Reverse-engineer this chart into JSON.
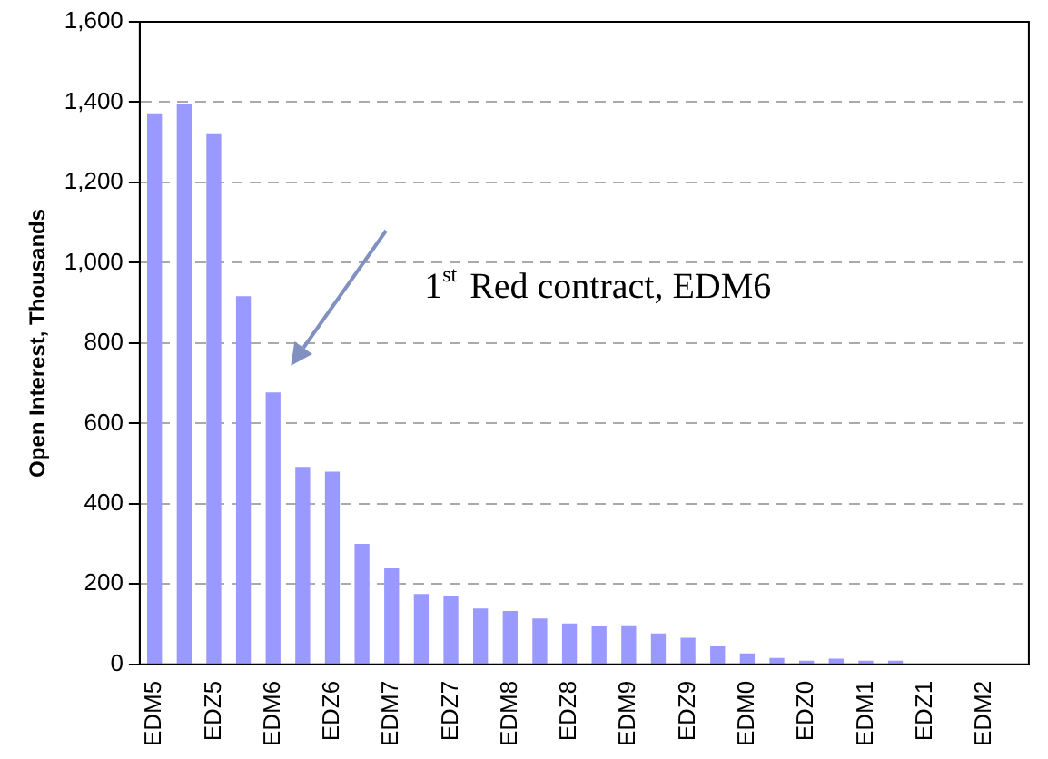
{
  "chart_data": {
    "type": "bar",
    "ylabel": "Open Interest, Thousands",
    "categories": [
      "EDM5",
      null,
      "EDZ5",
      null,
      "EDM6",
      null,
      "EDZ6",
      null,
      "EDM7",
      null,
      "EDZ7",
      null,
      "EDM8",
      null,
      "EDZ8",
      null,
      "EDM9",
      null,
      "EDZ9",
      null,
      "EDM0",
      null,
      "EDZ0",
      null,
      "EDM1",
      null,
      "EDZ1",
      null,
      "EDM2",
      null
    ],
    "values": [
      1370,
      1395,
      1320,
      917,
      677,
      492,
      480,
      300,
      239,
      175,
      169,
      139,
      133,
      114,
      102,
      95,
      97,
      77,
      66,
      45,
      27,
      16,
      9,
      14,
      9,
      9,
      0,
      0,
      0,
      0
    ],
    "color": "#9999ff",
    "ylim": [
      0,
      1600
    ],
    "yticks": [
      0,
      200,
      400,
      600,
      800,
      {
        "value": 1000,
        "label": "1,000"
      },
      {
        "value": 1200,
        "label": "1,200"
      },
      {
        "value": 1400,
        "label": "1,400"
      },
      {
        "value": 1600,
        "label": "1,600"
      }
    ],
    "grid": "y",
    "legend": false,
    "annotations": [
      "1$^{st}$ Red contract, EDM6"
    ]
  }
}
